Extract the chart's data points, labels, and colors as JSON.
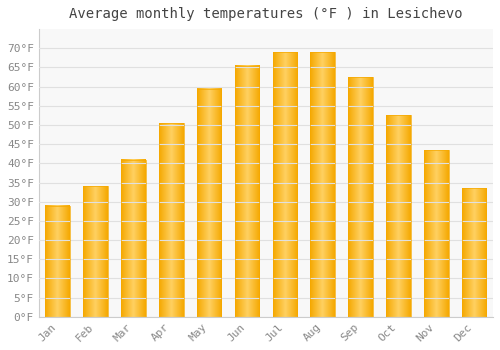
{
  "title": "Average monthly temperatures (°F ) in Lesichevo",
  "months": [
    "Jan",
    "Feb",
    "Mar",
    "Apr",
    "May",
    "Jun",
    "Jul",
    "Aug",
    "Sep",
    "Oct",
    "Nov",
    "Dec"
  ],
  "values": [
    29,
    34,
    41,
    50.5,
    59.5,
    65.5,
    69,
    69,
    62.5,
    52.5,
    43.5,
    33.5
  ],
  "bar_color_center": "#FFD060",
  "bar_color_edge": "#F5A800",
  "background_color": "#FFFFFF",
  "plot_bg_color": "#F8F8F8",
  "grid_color": "#E0E0E0",
  "tick_label_color": "#888888",
  "title_color": "#444444",
  "spine_color": "#CCCCCC",
  "ylim": [
    0,
    75
  ],
  "yticks": [
    0,
    5,
    10,
    15,
    20,
    25,
    30,
    35,
    40,
    45,
    50,
    55,
    60,
    65,
    70
  ],
  "ytick_labels": [
    "0°F",
    "5°F",
    "10°F",
    "15°F",
    "20°F",
    "25°F",
    "30°F",
    "35°F",
    "40°F",
    "45°F",
    "50°F",
    "55°F",
    "60°F",
    "65°F",
    "70°F"
  ],
  "title_fontsize": 10,
  "tick_fontsize": 8,
  "figsize": [
    5.0,
    3.5
  ],
  "dpi": 100,
  "bar_width": 0.65
}
